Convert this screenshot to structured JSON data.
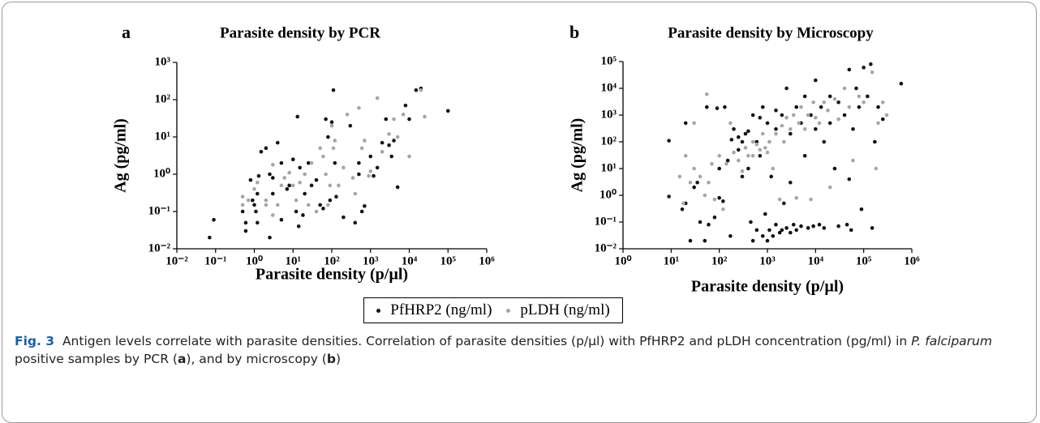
{
  "chart_data": [
    {
      "type": "scatter",
      "panel_label": "a",
      "title": "Parasite density by PCR",
      "x_label": "Parasite density (p/µl)",
      "y_label": "Ag (pg/ml)",
      "log_x": true,
      "log_y": true,
      "xlim": [
        0.01,
        1000000
      ],
      "ylim": [
        0.01,
        1000
      ],
      "xticks": [
        {
          "value": 0.01,
          "label": "10⁻²"
        },
        {
          "value": 0.1,
          "label": "10⁻¹"
        },
        {
          "value": 1,
          "label": "10⁰"
        },
        {
          "value": 10,
          "label": "10¹"
        },
        {
          "value": 100,
          "label": "10²"
        },
        {
          "value": 1000,
          "label": "10³"
        },
        {
          "value": 10000,
          "label": "10⁴"
        },
        {
          "value": 100000,
          "label": "10⁵"
        },
        {
          "value": 1000000,
          "label": "10⁶"
        }
      ],
      "yticks": [
        {
          "value": 0.01,
          "label": "10⁻²"
        },
        {
          "value": 0.1,
          "label": "10⁻¹"
        },
        {
          "value": 1,
          "label": "10⁰"
        },
        {
          "value": 10,
          "label": "10¹"
        },
        {
          "value": 100,
          "label": "10²"
        },
        {
          "value": 1000,
          "label": "10³"
        }
      ],
      "series": [
        {
          "name": "PfHRP2 (ng/ml)",
          "color": "#111111",
          "x": [
            0.07,
            0.09,
            0.5,
            0.6,
            0.6,
            0.8,
            0.9,
            1,
            1.1,
            1.2,
            1.3,
            1.5,
            1.2,
            2,
            2.5,
            3,
            3,
            2.5,
            4,
            5,
            5,
            7,
            8,
            10,
            12,
            13,
            14,
            15,
            18,
            20,
            25,
            30,
            40,
            50,
            60,
            70,
            80,
            90,
            100,
            110,
            120,
            130,
            200,
            300,
            400,
            500,
            500,
            600,
            700,
            1000,
            1200,
            1500,
            2000,
            2500,
            3000,
            3500,
            4000,
            5000,
            8000,
            10000,
            15000,
            20000,
            100000
          ],
          "values": [
            0.02,
            0.06,
            0.1,
            0.05,
            0.03,
            0.7,
            0.2,
            0.15,
            0.1,
            0.05,
            0.9,
            4,
            0.3,
            5,
            1,
            0.8,
            0.3,
            0.02,
            7,
            0.06,
            2,
            0.4,
            0.5,
            2.5,
            0.1,
            35,
            0.04,
            1.5,
            0.08,
            0.3,
            2,
            0.5,
            0.7,
            0.15,
            0.12,
            30,
            10,
            0.2,
            25,
            180,
            2,
            0.25,
            0.07,
            20,
            0.05,
            2,
            1,
            0.1,
            0.14,
            3,
            0.9,
            1.5,
            7,
            30,
            6,
            3,
            8,
            0.45,
            70,
            30,
            180,
            200,
            50
          ]
        },
        {
          "name": "pLDH (ng/ml)",
          "color": "#a6a6a6",
          "x": [
            0.5,
            0.5,
            0.7,
            1,
            1.2,
            2,
            2,
            3,
            3,
            4,
            5,
            6,
            8,
            10,
            12,
            15,
            20,
            25,
            30,
            40,
            50,
            60,
            70,
            80,
            90,
            100,
            110,
            120,
            150,
            200,
            250,
            350,
            400,
            500,
            600,
            700,
            900,
            1000,
            1500,
            2000,
            3000,
            4000,
            5000,
            7000,
            10000,
            20000,
            25000
          ],
          "values": [
            0.15,
            0.25,
            0.2,
            0.4,
            0.6,
            0.15,
            0.2,
            0.08,
            1.8,
            0.15,
            0.5,
            0.8,
            1.1,
            0.5,
            0.2,
            0.6,
            1,
            0.15,
            2,
            0.1,
            5,
            3,
            1,
            0.15,
            0.5,
            20,
            5,
            8,
            0.5,
            1.5,
            40,
            0.8,
            0.3,
            60,
            5,
            8,
            0.9,
            1.2,
            110,
            4,
            12,
            30,
            10,
            40,
            3,
            180,
            35
          ]
        }
      ]
    },
    {
      "type": "scatter",
      "panel_label": "b",
      "title": "Parasite density by Microscopy",
      "x_label": "Parasite density (p/µl)",
      "y_label": "Ag (pg/ml)",
      "log_x": true,
      "log_y": true,
      "xlim": [
        1,
        1000000
      ],
      "ylim": [
        0.01,
        100000
      ],
      "xticks": [
        {
          "value": 1,
          "label": "10⁰"
        },
        {
          "value": 10,
          "label": "10¹"
        },
        {
          "value": 100,
          "label": "10²"
        },
        {
          "value": 1000,
          "label": "10³"
        },
        {
          "value": 10000,
          "label": "10⁴"
        },
        {
          "value": 100000,
          "label": "10⁵"
        },
        {
          "value": 1000000,
          "label": "10⁶"
        }
      ],
      "yticks": [
        {
          "value": 0.01,
          "label": "10⁻²"
        },
        {
          "value": 0.1,
          "label": "10⁻¹"
        },
        {
          "value": 1,
          "label": "10⁰"
        },
        {
          "value": 10,
          "label": "10¹"
        },
        {
          "value": 100,
          "label": "10²"
        },
        {
          "value": 1000,
          "label": "10³"
        },
        {
          "value": 10000,
          "label": "10⁴"
        },
        {
          "value": 100000,
          "label": "10⁵"
        }
      ],
      "series": [
        {
          "name": "PfHRP2 (ng/ml)",
          "color": "#111111",
          "x": [
            9,
            9,
            17,
            20,
            20,
            25,
            30,
            35,
            40,
            50,
            55,
            60,
            80,
            90,
            100,
            100,
            120,
            130,
            150,
            170,
            200,
            250,
            300,
            300,
            350,
            400,
            450,
            500,
            500,
            600,
            600,
            700,
            800,
            800,
            900,
            1000,
            1000,
            1100,
            1200,
            1300,
            1500,
            1500,
            1800,
            2000,
            2000,
            2200,
            2500,
            2500,
            3000,
            3000,
            3500,
            4000,
            4000,
            5000,
            5000,
            6000,
            6000,
            7000,
            8000,
            9000,
            10000,
            10000,
            12000,
            13000,
            15000,
            15000,
            20000,
            20000,
            25000,
            30000,
            30000,
            40000,
            45000,
            50000,
            50000,
            55000,
            60000,
            70000,
            80000,
            90000,
            100000,
            120000,
            140000,
            150000,
            170000,
            200000,
            250000,
            600000,
            3000,
            1500,
            700,
            400,
            250,
            180
          ],
          "values": [
            110,
            0.9,
            0.3,
            0.5,
            500,
            0.02,
            2,
            3,
            0.1,
            0.02,
            2000,
            0.08,
            0.15,
            1800,
            0.8,
            10,
            0.6,
            2000,
            20,
            0.03,
            300,
            50,
            100,
            5,
            200,
            10,
            0.1,
            0.02,
            1000,
            0.05,
            100,
            30,
            0.03,
            2000,
            0.2,
            0.02,
            500,
            0.05,
            5,
            0.03,
            300,
            0.08,
            0.04,
            1000,
            0.05,
            0.5,
            0.06,
            10000,
            0.04,
            200,
            0.08,
            2000,
            0.05,
            500,
            0.07,
            5000,
            30,
            0.06,
            1000,
            0.07,
            20000,
            300,
            0.08,
            2000,
            100,
            0.06,
            5000,
            500,
            10,
            3000,
            0.07,
            1000,
            0.08,
            50000,
            4,
            0.05,
            300,
            10000,
            2000,
            0.3,
            60000,
            5000,
            80000,
            0.06,
            100,
            2000,
            700,
            15000,
            3,
            1500,
            800,
            250,
            150,
            120
          ]
        },
        {
          "name": "pLDH (ng/ml)",
          "color": "#a6a6a6",
          "x": [
            15,
            18,
            20,
            25,
            30,
            30,
            40,
            50,
            55,
            60,
            70,
            80,
            100,
            120,
            140,
            170,
            200,
            250,
            300,
            350,
            400,
            500,
            500,
            600,
            700,
            800,
            900,
            1000,
            1100,
            1300,
            1500,
            1800,
            2000,
            2200,
            2500,
            3000,
            3500,
            4000,
            4500,
            5000,
            6000,
            7000,
            8000,
            9000,
            10000,
            12000,
            15000,
            18000,
            20000,
            25000,
            30000,
            40000,
            50000,
            60000,
            80000,
            100000,
            150000,
            180000,
            200000,
            250000,
            300000
          ],
          "values": [
            5,
            0.5,
            30,
            3,
            10,
            500,
            5,
            1,
            6000,
            3,
            15,
            0.7,
            30,
            0.3,
            15,
            500,
            40,
            20,
            8,
            60,
            30,
            100,
            30,
            80,
            50,
            200,
            60,
            40,
            100,
            10,
            200,
            0.7,
            400,
            100,
            800,
            300,
            1000,
            0.8,
            500,
            2000,
            300,
            1000,
            0.7,
            3000,
            800,
            500,
            3000,
            1500,
            2,
            4000,
            700,
            10000,
            2000,
            20,
            5000,
            3000,
            40000,
            10,
            500,
            3000,
            1000
          ]
        }
      ]
    }
  ],
  "caption": [
    "Fig. 3",
    "Antigen levels correlate with parasite densities. Correlation of parasite densities (p/µl) with PfHRP2 and pLDH concentration (pg/ml) in ",
    "P. falciparum",
    " positive samples by PCR (",
    "a",
    "), and by microscopy (",
    "b",
    ")"
  ]
}
